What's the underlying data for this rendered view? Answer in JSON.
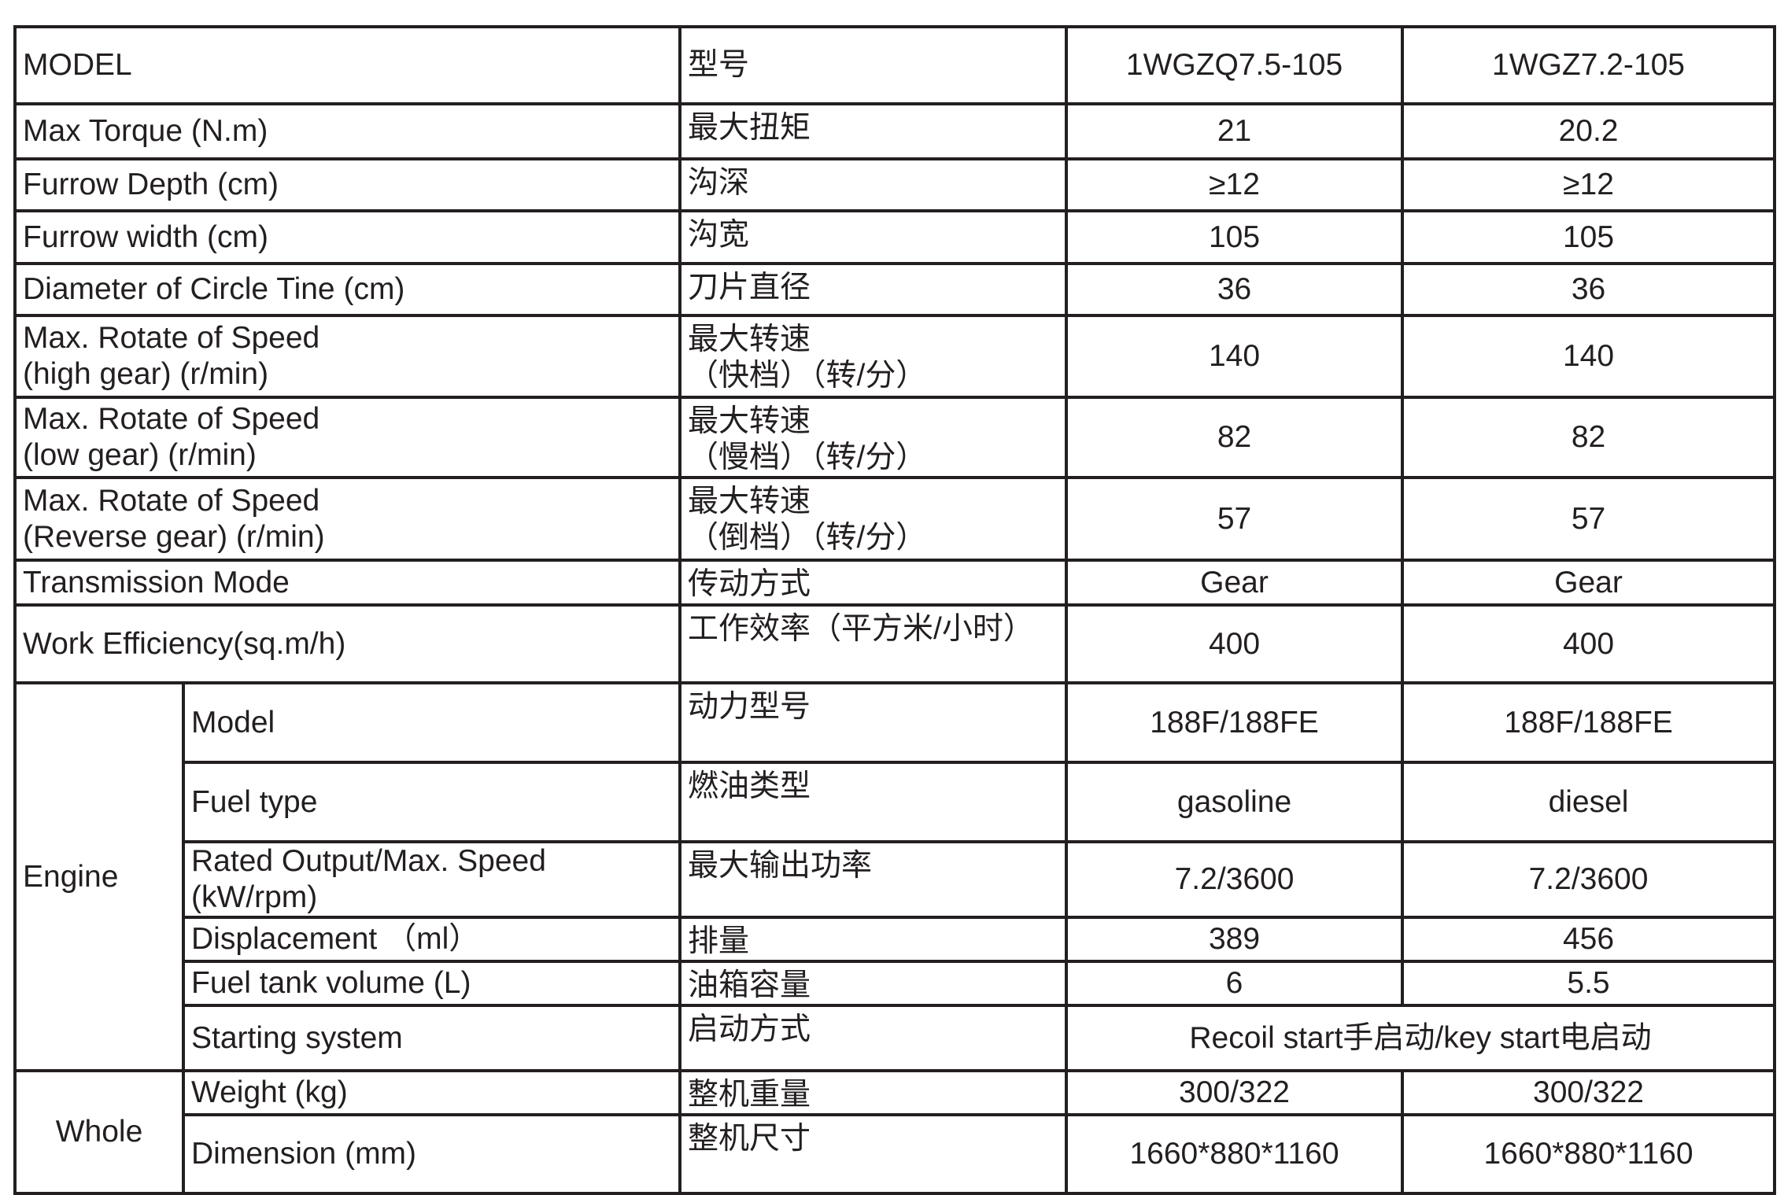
{
  "header": {
    "en": "MODEL",
    "cn": "型号",
    "models": [
      "1WGZQ7.5-105",
      "1WGZ7.2-105"
    ]
  },
  "rows": [
    {
      "en": "Max Torque (N.m)",
      "cn": "最大扭矩",
      "values": [
        "21",
        "20.2"
      ]
    },
    {
      "en": "Furrow Depth (cm)",
      "cn": "沟深",
      "values": [
        "≥12",
        "≥12"
      ]
    },
    {
      "en": "Furrow width (cm)",
      "cn": "沟宽",
      "values": [
        "105",
        "105"
      ]
    },
    {
      "en": "Diameter of Circle Tine (cm)",
      "cn": "刀片直径",
      "values": [
        "36",
        "36"
      ]
    },
    {
      "en": "Max. Rotate of Speed\n(high gear) (r/min)",
      "cn": "最大转速\n（快档）（转/分）",
      "values": [
        "140",
        "140"
      ]
    },
    {
      "en": "Max. Rotate of Speed\n(low gear) (r/min)",
      "cn": "最大转速\n（慢档）（转/分）",
      "values": [
        "82",
        "82"
      ]
    },
    {
      "en": "Max. Rotate of Speed\n(Reverse gear) (r/min)",
      "cn": "最大转速\n（倒档）（转/分）",
      "values": [
        "57",
        "57"
      ]
    },
    {
      "en": "Transmission Mode",
      "cn": "传动方式",
      "values": [
        "Gear",
        "Gear"
      ]
    },
    {
      "en": "Work Efficiency(sq.m/h)",
      "cn": "工作效率（平方米/小时）",
      "values": [
        "400",
        "400"
      ]
    }
  ],
  "groups": [
    {
      "label": "Engine",
      "rows": [
        {
          "en": "Model",
          "cn": "动力型号",
          "values": [
            "188F/188FE",
            "188F/188FE"
          ]
        },
        {
          "en": "Fuel type",
          "cn": "燃油类型",
          "values": [
            "gasoline",
            "diesel"
          ]
        },
        {
          "en": "Rated Output/Max. Speed\n(kW/rpm)",
          "cn": "最大输出功率",
          "values": [
            "7.2/3600",
            "7.2/3600"
          ]
        },
        {
          "en": "Displacement （ml）",
          "cn": "排量",
          "values": [
            "389",
            "456"
          ]
        },
        {
          "en": "Fuel tank volume (L)",
          "cn": "油箱容量",
          "values": [
            "6",
            "5.5"
          ]
        },
        {
          "en": "Starting system",
          "cn": "启动方式",
          "merged_value": "Recoil start手启动/key start电启动"
        }
      ]
    },
    {
      "label": "Whole",
      "rows": [
        {
          "en": "Weight (kg)",
          "cn": "整机重量",
          "values": [
            "300/322",
            "300/322"
          ]
        },
        {
          "en": "Dimension (mm)",
          "cn": "整机尺寸",
          "values": [
            "1660*880*1160",
            "1660*880*1160"
          ]
        }
      ]
    }
  ]
}
